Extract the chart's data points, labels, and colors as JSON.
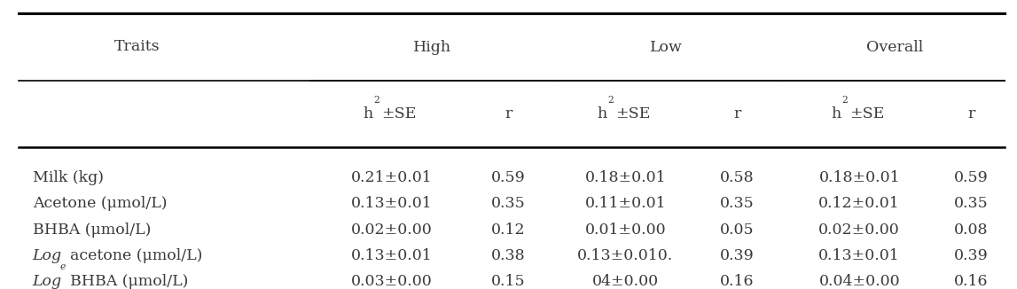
{
  "col_groups": [
    "High",
    "Low",
    "Overall"
  ],
  "row_header": "Traits",
  "rows": [
    {
      "label": "Milk (kg)",
      "italic_prefix": false,
      "values": [
        "0.21±0.01",
        "0.59",
        "0.18±0.01",
        "0.58",
        "0.18±0.01",
        "0.59"
      ]
    },
    {
      "label": "Acetone (μmol/L)",
      "italic_prefix": false,
      "values": [
        "0.13±0.01",
        "0.35",
        "0.11±0.01",
        "0.35",
        "0.12±0.01",
        "0.35"
      ]
    },
    {
      "label": "BHBA (μmol/L)",
      "italic_prefix": false,
      "values": [
        "0.02±0.00",
        "0.12",
        "0.01±0.00",
        "0.05",
        "0.02±0.00",
        "0.08"
      ]
    },
    {
      "label": "acetone (μmol/L)",
      "italic_prefix": true,
      "values": [
        "0.13±0.01",
        "0.38",
        "0.13±0.010.",
        "0.39",
        "0.13±0.01",
        "0.39"
      ]
    },
    {
      "label": "BHBA (μmol/L)",
      "italic_prefix": true,
      "values": [
        "0.03±0.00",
        "0.15",
        "04±0.00",
        "0.16",
        "0.04±0.00",
        "0.16"
      ]
    }
  ],
  "figsize": [
    11.47,
    3.26
  ],
  "dpi": 100,
  "text_color": "#3a3a3a",
  "font_size": 12.5,
  "bg_color": "#ffffff"
}
